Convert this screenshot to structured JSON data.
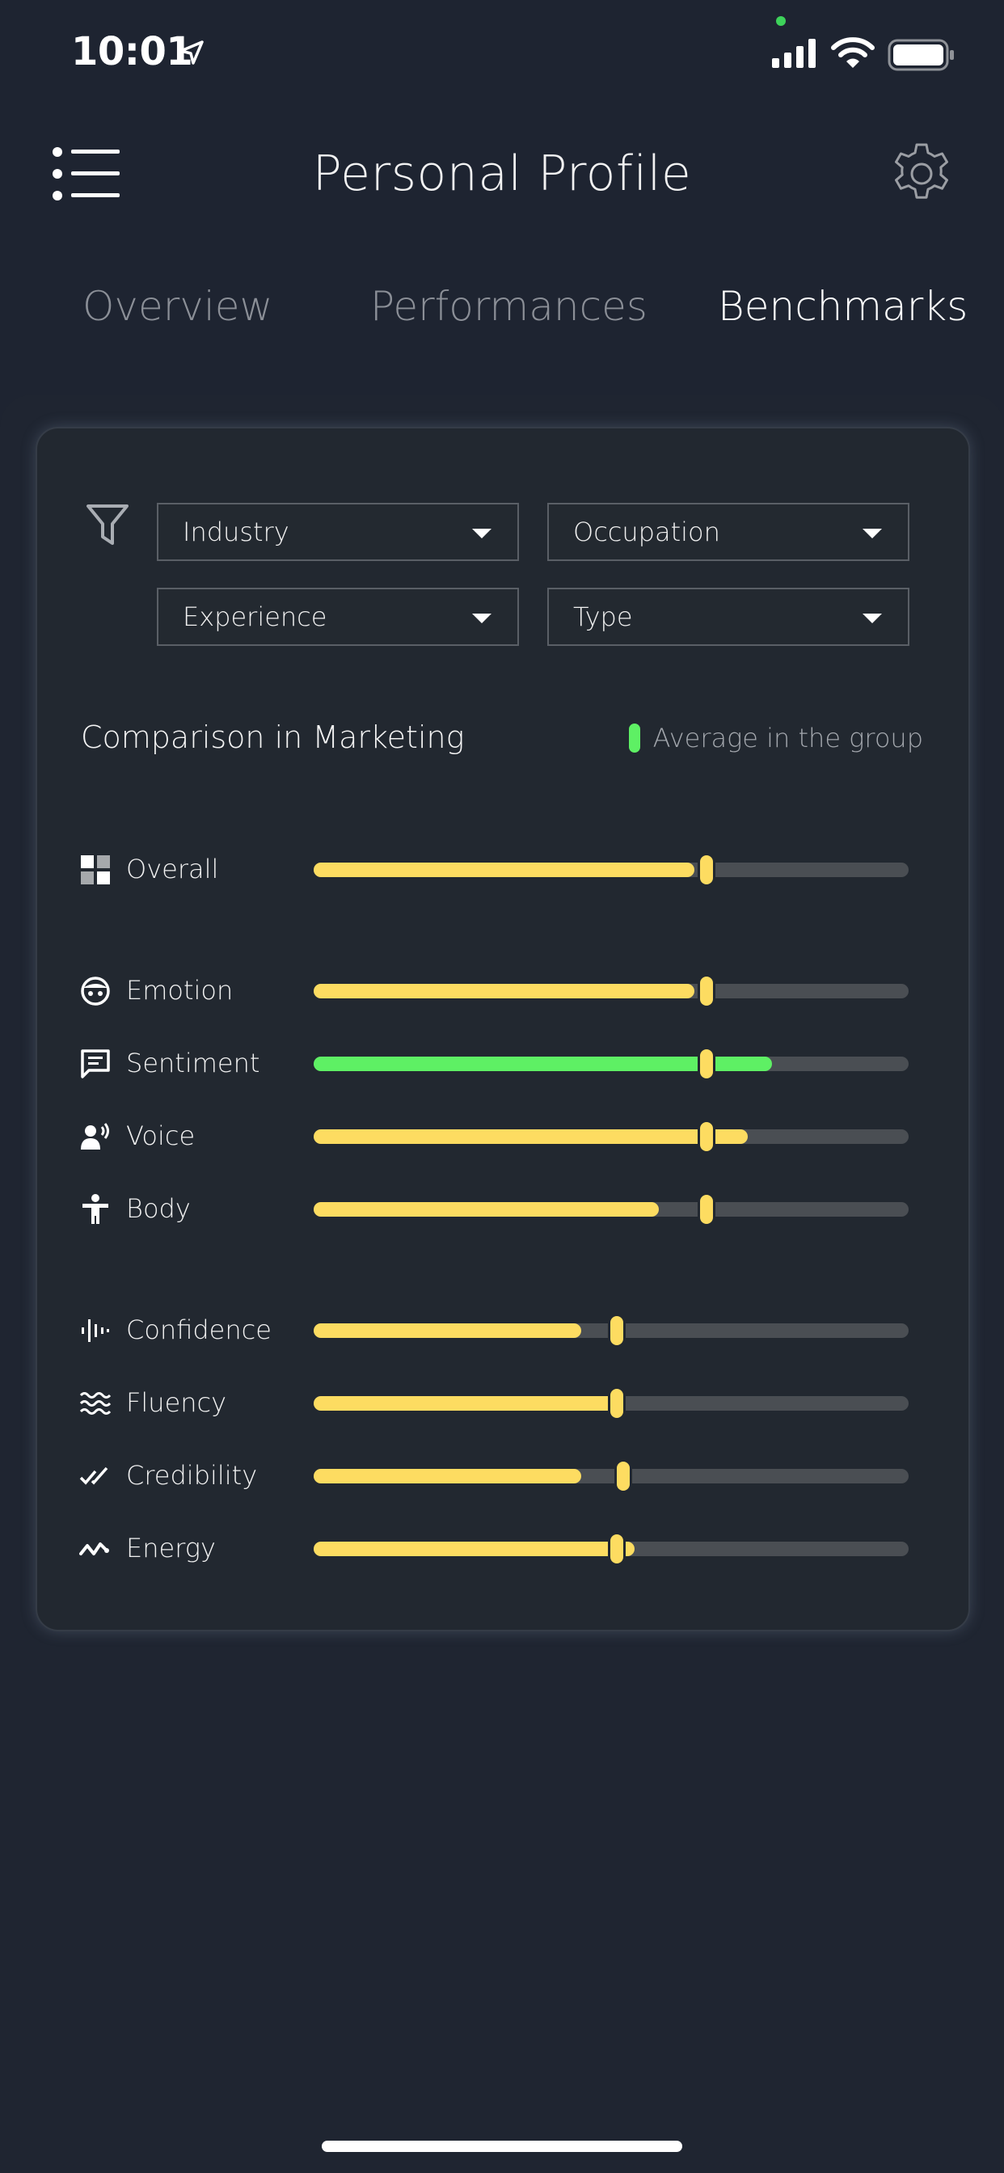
{
  "status_bar": {
    "time": "10:01"
  },
  "header": {
    "title": "Personal Profile"
  },
  "tabs": [
    {
      "label": "Overview",
      "active": false
    },
    {
      "label": "Performances",
      "active": false
    },
    {
      "label": "Benchmarks",
      "active": true
    }
  ],
  "filters": {
    "industry": "Industry",
    "occupation": "Occupation",
    "experience": "Experience",
    "type": "Type"
  },
  "comparison": {
    "title": "Comparison in Marketing",
    "legend_label": "Average in the group",
    "legend_color": "#5ef064"
  },
  "colors": {
    "score_fill": "#fddc61",
    "above_average_fill": "#5ef064",
    "track": "#4a4e53"
  },
  "metrics": [
    {
      "key": "overall",
      "label": "Overall",
      "icon": "grid-icon",
      "score": 0.64,
      "average": 0.66,
      "highlight": false
    },
    {
      "key": "emotion",
      "label": "Emotion",
      "icon": "face-icon",
      "score": 0.64,
      "average": 0.66,
      "highlight": false
    },
    {
      "key": "sentiment",
      "label": "Sentiment",
      "icon": "message-icon",
      "score": 0.77,
      "average": 0.66,
      "highlight": true
    },
    {
      "key": "voice",
      "label": "Voice",
      "icon": "speaking-person-icon",
      "score": 0.73,
      "average": 0.66,
      "highlight": false
    },
    {
      "key": "body",
      "label": "Body",
      "icon": "person-icon",
      "score": 0.58,
      "average": 0.66,
      "highlight": false
    },
    {
      "key": "confidence",
      "label": "Confidence",
      "icon": "waveform-icon",
      "score": 0.45,
      "average": 0.51,
      "highlight": false
    },
    {
      "key": "fluency",
      "label": "Fluency",
      "icon": "waves-icon",
      "score": 0.51,
      "average": 0.51,
      "highlight": false
    },
    {
      "key": "credibility",
      "label": "Credibility",
      "icon": "double-check-icon",
      "score": 0.45,
      "average": 0.52,
      "highlight": false
    },
    {
      "key": "energy",
      "label": "Energy",
      "icon": "zigzag-icon",
      "score": 0.54,
      "average": 0.51,
      "highlight": false
    }
  ]
}
